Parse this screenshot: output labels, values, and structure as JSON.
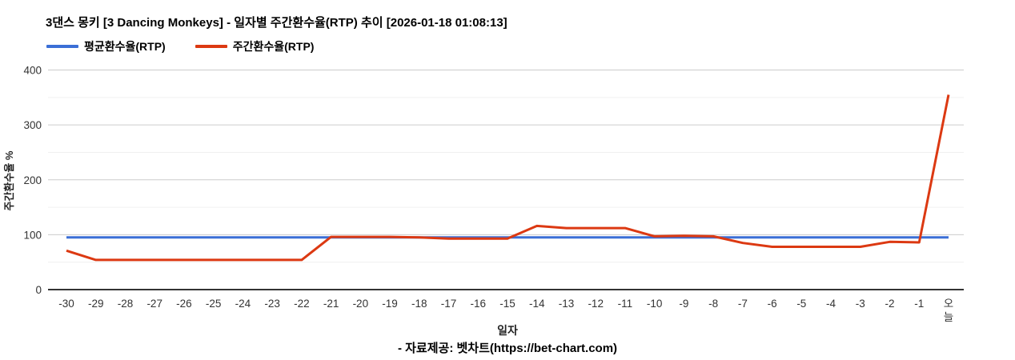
{
  "title": "3댄스 몽키 [3 Dancing Monkeys] - 일자별 주간환수율(RTP) 추이 [2026-01-18 01:08:13]",
  "legend": [
    {
      "label": "평균환수율(RTP)",
      "color": "#3B6FD6"
    },
    {
      "label": "주간환수율(RTP)",
      "color": "#DC3912"
    }
  ],
  "footer": "- 자료제공: 벳차트(https://bet-chart.com)",
  "chart_data": {
    "type": "line",
    "title": "3댄스 몽키 [3 Dancing Monkeys] - 일자별 주간환수율(RTP) 추이 [2026-01-18 01:08:13]",
    "xlabel": "일자",
    "ylabel": "주간환수율 %",
    "ylim": [
      0,
      400
    ],
    "yticks": [
      0,
      100,
      200,
      300,
      400
    ],
    "minor_gridlines_every": 50,
    "grid": true,
    "legend_position": "top",
    "categories": [
      "-30",
      "-29",
      "-28",
      "-27",
      "-26",
      "-25",
      "-24",
      "-23",
      "-22",
      "-21",
      "-20",
      "-19",
      "-18",
      "-17",
      "-16",
      "-15",
      "-14",
      "-13",
      "-12",
      "-11",
      "-10",
      "-9",
      "-8",
      "-7",
      "-6",
      "-5",
      "-4",
      "-3",
      "-2",
      "-1",
      "오늘"
    ],
    "series": [
      {
        "name": "평균환수율(RTP)",
        "color": "#3B6FD6",
        "values": [
          95,
          95,
          95,
          95,
          95,
          95,
          95,
          95,
          95,
          95,
          95,
          95,
          95,
          95,
          95,
          95,
          95,
          95,
          95,
          95,
          95,
          95,
          95,
          95,
          95,
          95,
          95,
          95,
          95,
          95,
          95
        ]
      },
      {
        "name": "주간환수율(RTP)",
        "color": "#DC3912",
        "values": [
          71,
          54,
          54,
          54,
          54,
          54,
          54,
          54,
          54,
          96,
          96,
          96,
          95,
          93,
          93,
          93,
          116,
          112,
          112,
          112,
          97,
          98,
          97,
          85,
          78,
          78,
          78,
          78,
          87,
          86,
          355
        ]
      }
    ]
  }
}
